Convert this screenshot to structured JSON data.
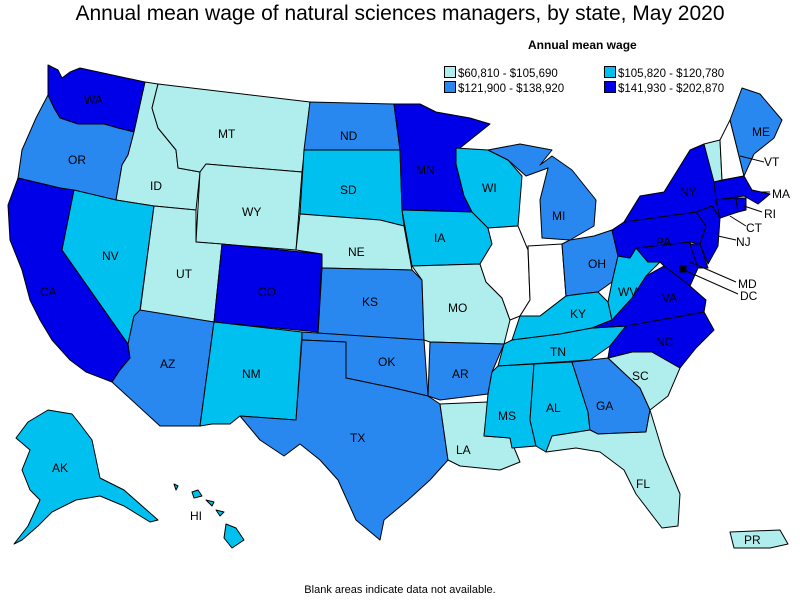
{
  "title": "Annual mean wage of natural sciences managers, by state, May 2020",
  "legend": {
    "title": "Annual mean wage",
    "items": [
      {
        "label": "$60,810 - $105,690",
        "color": "#b0eeee"
      },
      {
        "label": "$105,820 - $120,780",
        "color": "#00c0f0"
      },
      {
        "label": "$121,900 - $138,920",
        "color": "#2888f0"
      },
      {
        "label": "$141,930 - $202,870",
        "color": "#0000e8"
      }
    ]
  },
  "no_data_color": "#ffffff",
  "footnote": "Blank areas indicate data not available.",
  "states": {
    "WA": {
      "label": "WA",
      "bin": 3
    },
    "OR": {
      "label": "OR",
      "bin": 2
    },
    "CA": {
      "label": "CA",
      "bin": 3
    },
    "ID": {
      "label": "ID",
      "bin": 0
    },
    "NV": {
      "label": "NV",
      "bin": 1
    },
    "MT": {
      "label": "MT",
      "bin": 0
    },
    "WY": {
      "label": "WY",
      "bin": 0
    },
    "UT": {
      "label": "UT",
      "bin": 0
    },
    "AZ": {
      "label": "AZ",
      "bin": 2
    },
    "CO": {
      "label": "CO",
      "bin": 3
    },
    "NM": {
      "label": "NM",
      "bin": 1
    },
    "ND": {
      "label": "ND",
      "bin": 2
    },
    "SD": {
      "label": "SD",
      "bin": 1
    },
    "NE": {
      "label": "NE",
      "bin": 0
    },
    "KS": {
      "label": "KS",
      "bin": 2
    },
    "OK": {
      "label": "OK",
      "bin": 2
    },
    "TX": {
      "label": "TX",
      "bin": 2
    },
    "MN": {
      "label": "MN",
      "bin": 3
    },
    "IA": {
      "label": "IA",
      "bin": 1
    },
    "MO": {
      "label": "MO",
      "bin": 0
    },
    "AR": {
      "label": "AR",
      "bin": 2
    },
    "LA": {
      "label": "LA",
      "bin": 0
    },
    "WI": {
      "label": "WI",
      "bin": 1
    },
    "IL": {
      "label": "",
      "bin": null
    },
    "MI": {
      "label": "MI",
      "bin": 2
    },
    "IN": {
      "label": "",
      "bin": null
    },
    "OH": {
      "label": "OH",
      "bin": 2
    },
    "KY": {
      "label": "KY",
      "bin": 1
    },
    "TN": {
      "label": "TN",
      "bin": 1
    },
    "MS": {
      "label": "MS",
      "bin": 1
    },
    "AL": {
      "label": "AL",
      "bin": 1
    },
    "GA": {
      "label": "GA",
      "bin": 2
    },
    "FL": {
      "label": "FL",
      "bin": 0
    },
    "SC": {
      "label": "SC",
      "bin": 0
    },
    "NC": {
      "label": "NC",
      "bin": 3
    },
    "VA": {
      "label": "VA",
      "bin": 3
    },
    "WV": {
      "label": "WV",
      "bin": 1
    },
    "PA": {
      "label": "PA",
      "bin": 3
    },
    "NY": {
      "label": "NY",
      "bin": 3
    },
    "ME": {
      "label": "ME",
      "bin": 2
    },
    "NH": {
      "label": "",
      "bin": null
    },
    "VT": {
      "label": "VT",
      "bin": 0
    },
    "MA": {
      "label": "MA",
      "bin": 3
    },
    "RI": {
      "label": "RI",
      "bin": 3
    },
    "CT": {
      "label": "CT",
      "bin": 3
    },
    "NJ": {
      "label": "NJ",
      "bin": 3
    },
    "DE": {
      "label": "",
      "bin": 3
    },
    "MD": {
      "label": "MD",
      "bin": 3
    },
    "DC": {
      "label": "DC",
      "bin": 3
    },
    "AK": {
      "label": "AK",
      "bin": 1
    },
    "HI": {
      "label": "HI",
      "bin": 1
    },
    "PR": {
      "label": "PR",
      "bin": 0
    }
  }
}
